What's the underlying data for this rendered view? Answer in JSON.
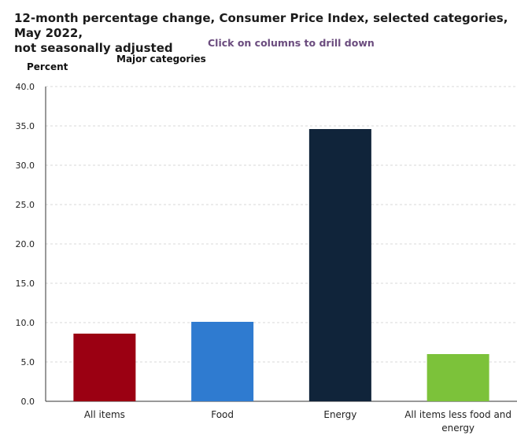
{
  "header": {
    "title_line1": "12-month percentage change, Consumer Price Index, selected categories, May 2022,",
    "title_line2": "not seasonally adjusted",
    "drill_text": "Click on columns to drill down",
    "subtitle": "Major categories"
  },
  "chart_data": {
    "type": "bar",
    "title": "12-month percentage change, Consumer Price Index, selected categories, May 2022, not seasonally adjusted",
    "subtitle": "Major categories",
    "ylabel": "Percent",
    "xlabel": "",
    "ylim": [
      0,
      40
    ],
    "yticks": [
      "0.0",
      "5.0",
      "10.0",
      "15.0",
      "20.0",
      "25.0",
      "30.0",
      "35.0",
      "40.0"
    ],
    "grid": true,
    "categories": [
      {
        "label_lines": [
          "All items"
        ],
        "value": 8.6,
        "color": "#9b0012"
      },
      {
        "label_lines": [
          "Food"
        ],
        "value": 10.1,
        "color": "#2f7bd0"
      },
      {
        "label_lines": [
          "Energy"
        ],
        "value": 34.6,
        "color": "#10243a"
      },
      {
        "label_lines": [
          "All items less food and",
          "energy"
        ],
        "value": 6.0,
        "color": "#7cc23a"
      }
    ]
  }
}
